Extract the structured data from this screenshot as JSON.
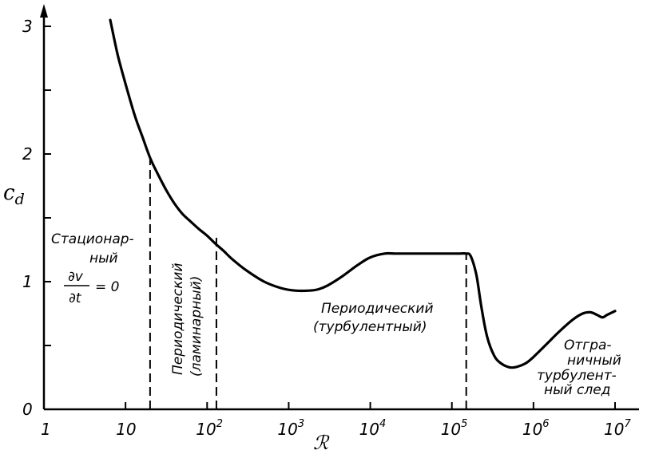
{
  "chart_data": {
    "type": "line",
    "title": "",
    "xlabel": "ℛ",
    "ylabel": "c",
    "ylabel_sub": "d",
    "xscale": "log",
    "xlim": [
      1,
      10000000
    ],
    "ylim": [
      0,
      3
    ],
    "grid": false,
    "x_ticks": [
      {
        "base": "1",
        "exp": ""
      },
      {
        "base": "10",
        "exp": ""
      },
      {
        "base": "10",
        "exp": "2"
      },
      {
        "base": "10",
        "exp": "3"
      },
      {
        "base": "10",
        "exp": "4"
      },
      {
        "base": "10",
        "exp": "5"
      },
      {
        "base": "10",
        "exp": "6"
      },
      {
        "base": "10",
        "exp": "7"
      }
    ],
    "y_ticks": [
      "0",
      "1",
      "2",
      "3"
    ],
    "series": [
      {
        "x": [
          6.5,
          8,
          10,
          13,
          16,
          20,
          25,
          32,
          40,
          50,
          63,
          80,
          100,
          125,
          160,
          200,
          300,
          500,
          800,
          1200,
          1800,
          2300,
          3000,
          4500,
          7000,
          10000,
          15000,
          20000,
          30000,
          50000,
          80000,
          120000,
          150000,
          170000,
          200000,
          230000,
          270000,
          330000,
          400000,
          500000,
          600000,
          800000,
          1000000,
          1500000,
          2000000,
          3000000,
          4000000,
          5000000,
          6000000,
          7000000,
          8000000,
          10000000
        ],
        "y": [
          3.05,
          2.78,
          2.55,
          2.3,
          2.14,
          1.97,
          1.84,
          1.71,
          1.61,
          1.53,
          1.47,
          1.41,
          1.36,
          1.3,
          1.24,
          1.18,
          1.09,
          1.0,
          0.95,
          0.93,
          0.93,
          0.94,
          0.97,
          1.04,
          1.13,
          1.19,
          1.22,
          1.22,
          1.22,
          1.22,
          1.22,
          1.22,
          1.22,
          1.2,
          1.05,
          0.8,
          0.57,
          0.42,
          0.36,
          0.33,
          0.33,
          0.36,
          0.41,
          0.52,
          0.6,
          0.7,
          0.75,
          0.76,
          0.74,
          0.72,
          0.74,
          0.77
        ]
      }
    ],
    "dividers": [
      {
        "x": 20,
        "y": 1.97
      },
      {
        "x": 130,
        "y": 1.38
      },
      {
        "x": 150000,
        "y": 1.22
      }
    ],
    "annotations": {
      "steady": [
        "Стационар-",
        "ный"
      ],
      "steady_formula": {
        "num": "∂v",
        "den": "∂t",
        "rhs": "= 0"
      },
      "periodic_laminar": [
        "Периодический",
        "(ламинарный)"
      ],
      "periodic_turbulent": [
        "Периодический",
        "(турбулентный)"
      ],
      "wake": [
        "Отгра-",
        "ничный",
        "турбулент-",
        "ный след"
      ]
    }
  }
}
